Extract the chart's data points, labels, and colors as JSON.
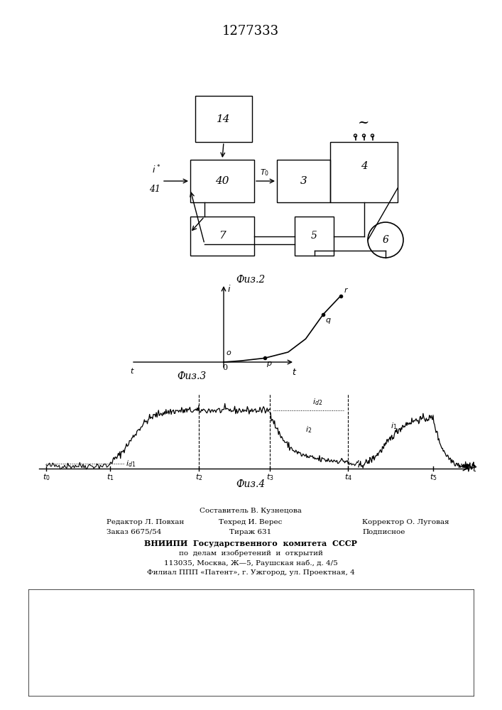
{
  "page_title": "1277333",
  "fig2_label": "Фuз.2",
  "fig3_label": "Фuз.3",
  "fig4_label": "Фuз.4",
  "footer_line1": "Составитель В. Кузнецова",
  "footer_line2_left": "Редактор Л. Повхан",
  "footer_line2_mid": "Техред И. Верес",
  "footer_line2_right": "Корректор О. Луговая",
  "footer_line3_left": "Заказ 6675/54",
  "footer_line3_mid": "Тираж 631",
  "footer_line3_right": "Подписное",
  "footer_line4": "ВНИИПИ  Государственного  комитета  СССР",
  "footer_line5": "по  делам  изобретений  и  открытий",
  "footer_line6": "113035, Москва, Ж—5, Раушская наб., д. 4/5",
  "footer_line7": "Филиал ППП «Патент», г. Ужгород, ул. Проектная, 4",
  "bg_color": "#ffffff",
  "line_color": "#000000"
}
